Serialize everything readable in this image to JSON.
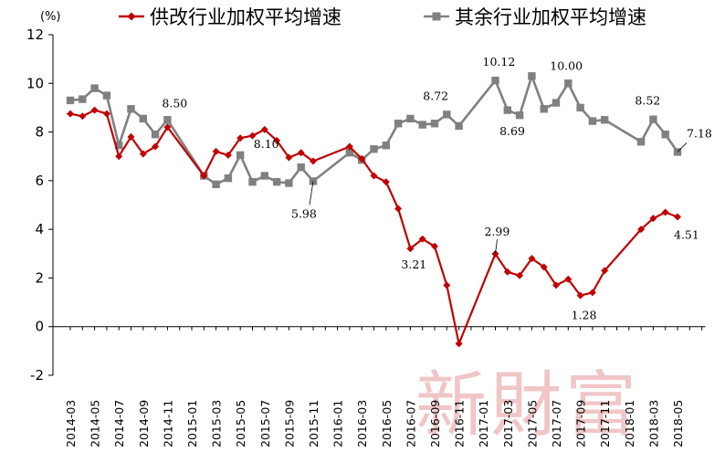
{
  "chart_data": {
    "type": "line",
    "unit_label": "(%)",
    "y_ticks": [
      "12",
      "10",
      "8",
      "6",
      "4",
      "2",
      "0",
      "-2"
    ],
    "ylim": [
      -2,
      12
    ],
    "x_ticks": [
      "2014-03",
      "2014-05",
      "2014-07",
      "2014-09",
      "2014-11",
      "2015-01",
      "2015-03",
      "2015-05",
      "2015-07",
      "2015-09",
      "2015-11",
      "2016-01",
      "2016-03",
      "2016-05",
      "2016-07",
      "2016-09",
      "2016-11",
      "2017-01",
      "2017-03",
      "2017-05",
      "2017-07",
      "2017-09",
      "2017-11",
      "2018-01",
      "2018-03",
      "2018-05"
    ],
    "x_start": "2014-03",
    "x_periods": 52,
    "series": [
      {
        "name": "供改行业加权平均增速",
        "color": "#c00000",
        "marker": "diamond",
        "points": [
          [
            0,
            8.75
          ],
          [
            1,
            8.65
          ],
          [
            2,
            8.9
          ],
          [
            3,
            8.75
          ],
          [
            4,
            7.0
          ],
          [
            5,
            7.8
          ],
          [
            6,
            7.1
          ],
          [
            7,
            7.4
          ],
          [
            8,
            8.2
          ],
          [
            11,
            6.2
          ],
          [
            12,
            7.2
          ],
          [
            13,
            7.05
          ],
          [
            14,
            7.75
          ],
          [
            15,
            7.85
          ],
          [
            16,
            8.1
          ],
          [
            17,
            7.65
          ],
          [
            18,
            6.95
          ],
          [
            19,
            7.15
          ],
          [
            20,
            6.8
          ],
          [
            23,
            7.4
          ],
          [
            24,
            6.9
          ],
          [
            25,
            6.2
          ],
          [
            26,
            5.95
          ],
          [
            27,
            4.85
          ],
          [
            28,
            3.21
          ],
          [
            29,
            3.6
          ],
          [
            30,
            3.3
          ],
          [
            31,
            1.7
          ],
          [
            32,
            -0.7
          ],
          [
            35,
            2.99
          ],
          [
            36,
            2.25
          ],
          [
            37,
            2.1
          ],
          [
            38,
            2.8
          ],
          [
            39,
            2.45
          ],
          [
            40,
            1.7
          ],
          [
            41,
            1.95
          ],
          [
            42,
            1.28
          ],
          [
            43,
            1.4
          ],
          [
            44,
            2.3
          ],
          [
            47,
            4.0
          ],
          [
            48,
            4.45
          ],
          [
            49,
            4.7
          ],
          [
            50,
            4.51
          ]
        ]
      },
      {
        "name": "其余行业加权平均增速",
        "color": "#808080",
        "marker": "square",
        "points": [
          [
            0,
            9.3
          ],
          [
            1,
            9.35
          ],
          [
            2,
            9.8
          ],
          [
            3,
            9.5
          ],
          [
            4,
            7.45
          ],
          [
            5,
            8.95
          ],
          [
            6,
            8.55
          ],
          [
            7,
            7.9
          ],
          [
            8,
            8.5
          ],
          [
            11,
            6.2
          ],
          [
            12,
            5.85
          ],
          [
            13,
            6.1
          ],
          [
            14,
            7.05
          ],
          [
            15,
            5.95
          ],
          [
            16,
            6.2
          ],
          [
            17,
            5.95
          ],
          [
            18,
            5.9
          ],
          [
            19,
            6.55
          ],
          [
            20,
            5.98
          ],
          [
            23,
            7.15
          ],
          [
            24,
            6.85
          ],
          [
            25,
            7.3
          ],
          [
            26,
            7.45
          ],
          [
            27,
            8.35
          ],
          [
            28,
            8.55
          ],
          [
            29,
            8.3
          ],
          [
            30,
            8.35
          ],
          [
            31,
            8.72
          ],
          [
            32,
            8.25
          ],
          [
            35,
            10.12
          ],
          [
            36,
            8.9
          ],
          [
            37,
            8.69
          ],
          [
            38,
            10.3
          ],
          [
            39,
            8.95
          ],
          [
            40,
            9.2
          ],
          [
            41,
            10.0
          ],
          [
            42,
            9.0
          ],
          [
            43,
            8.45
          ],
          [
            44,
            8.5
          ],
          [
            47,
            7.6
          ],
          [
            48,
            8.52
          ],
          [
            49,
            7.9
          ],
          [
            50,
            7.18
          ]
        ]
      }
    ],
    "annotations": [
      {
        "text": "8.50",
        "series": 1,
        "index": 8
      },
      {
        "text": "8.10",
        "series": 0,
        "index": 16
      },
      {
        "text": "5.98",
        "series": 1,
        "index": 20
      },
      {
        "text": "3.21",
        "series": 0,
        "index": 28
      },
      {
        "text": "8.72",
        "series": 1,
        "index": 31
      },
      {
        "text": "10.12",
        "series": 1,
        "index": 35
      },
      {
        "text": "8.69",
        "series": 1,
        "index": 37
      },
      {
        "text": "2.99",
        "series": 0,
        "index": 35
      },
      {
        "text": "10.00",
        "series": 1,
        "index": 41
      },
      {
        "text": "1.28",
        "series": 0,
        "index": 42
      },
      {
        "text": "8.52",
        "series": 1,
        "index": 48
      },
      {
        "text": "7.18",
        "series": 1,
        "index": 50
      },
      {
        "text": "4.51",
        "series": 0,
        "index": 50
      }
    ],
    "legend": [
      "供改行业加权平均增速",
      "其余行业加权平均增速"
    ],
    "legend_position": "top"
  },
  "watermark": "新財富"
}
